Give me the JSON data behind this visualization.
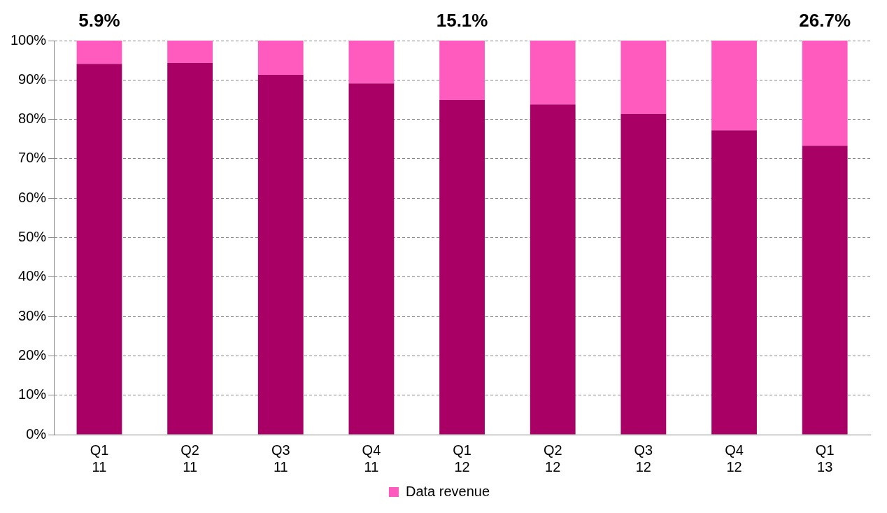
{
  "chart_data": {
    "type": "bar",
    "stacked": true,
    "categories": [
      "Q1 11",
      "Q2 11",
      "Q3 11",
      "Q4 11",
      "Q1 12",
      "Q2 12",
      "Q3 12",
      "Q4 12",
      "Q1 13"
    ],
    "series": [
      {
        "color": "#a80065",
        "values": [
          94.1,
          94.3,
          91.3,
          89.1,
          84.9,
          83.8,
          81.4,
          77.2,
          73.3
        ]
      },
      {
        "name": "Data revenue",
        "color": "#ff5bbf",
        "values": [
          5.9,
          5.7,
          8.7,
          10.9,
          15.1,
          16.2,
          18.6,
          22.8,
          26.7
        ],
        "value_labels": [
          "5.9%",
          null,
          null,
          null,
          "15.1%",
          null,
          null,
          null,
          "26.7%"
        ]
      }
    ],
    "ylim": [
      0,
      100
    ],
    "yticks": [
      {
        "value": 0,
        "label": "0%"
      },
      {
        "value": 10,
        "label": "10%"
      },
      {
        "value": 20,
        "label": "20%"
      },
      {
        "value": 30,
        "label": "30%"
      },
      {
        "value": 40,
        "label": "40%"
      },
      {
        "value": 50,
        "label": "50%"
      },
      {
        "value": 60,
        "label": "60%"
      },
      {
        "value": 70,
        "label": "70%"
      },
      {
        "value": 80,
        "label": "80%"
      },
      {
        "value": 90,
        "label": "90%"
      },
      {
        "value": 100,
        "label": "100%"
      }
    ],
    "grid": "y",
    "legend": "bottom"
  }
}
